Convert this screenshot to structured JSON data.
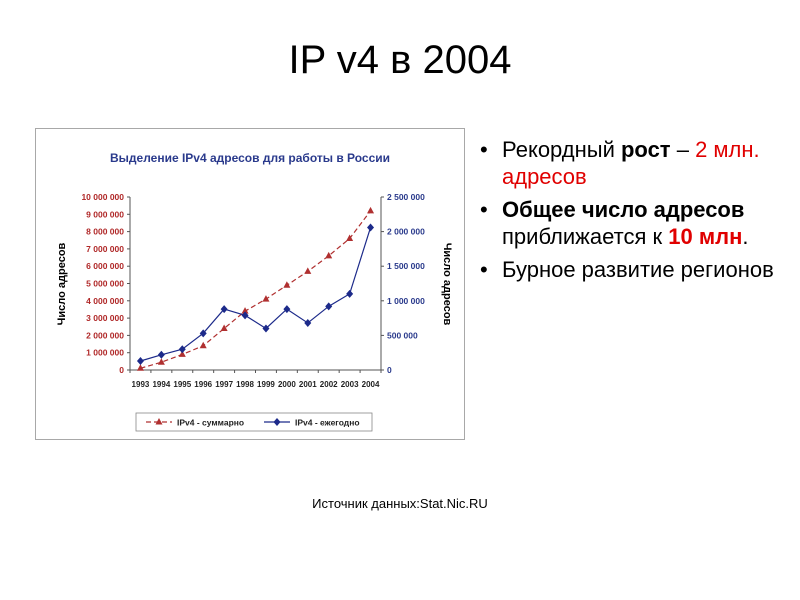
{
  "slide": {
    "title": "IP v4  в 2004",
    "source": "Источник данных:Stat.Nic.RU"
  },
  "bullets": [
    {
      "parts": [
        {
          "text": "Рекордный ",
          "bold": false,
          "color": ""
        },
        {
          "text": "рост",
          "bold": true,
          "color": ""
        },
        {
          "text": " – ",
          "bold": false,
          "color": ""
        },
        {
          "text": "2 млн. адресов",
          "bold": false,
          "color": "#e00000"
        }
      ]
    },
    {
      "parts": [
        {
          "text": "Общее число адресов",
          "bold": true,
          "color": ""
        },
        {
          "text": " приближается к ",
          "bold": false,
          "color": ""
        },
        {
          "text": "10 млн",
          "bold": true,
          "color": "#e00000"
        },
        {
          "text": ".",
          "bold": false,
          "color": ""
        }
      ]
    },
    {
      "parts": [
        {
          "text": "Бурное развитие регионов",
          "bold": false,
          "color": ""
        }
      ]
    }
  ],
  "chart_data": {
    "type": "line",
    "title": "Выделение IPv4 адресов для работы в России",
    "x": [
      "1993",
      "1994",
      "1995",
      "1996",
      "1997",
      "1998",
      "1999",
      "2000",
      "2001",
      "2002",
      "2003",
      "2004"
    ],
    "ylabel_left": "Число адресов",
    "ylabel_right": "Число адресов",
    "ylim_left": [
      0,
      10000000
    ],
    "ylim_right": [
      0,
      2500000
    ],
    "yticks_left": [
      "0",
      "1 000 000",
      "2 000 000",
      "3 000 000",
      "4 000 000",
      "5 000 000",
      "6 000 000",
      "7 000 000",
      "8 000 000",
      "9 000 000",
      "10 000 000"
    ],
    "yticks_right": [
      "0",
      "500 000",
      "1 000 000",
      "1 500 000",
      "2 000 000",
      "2 500 000"
    ],
    "left_axis_color": "#b02828",
    "right_axis_color": "#2a3a8c",
    "legend_position": "bottom",
    "series": [
      {
        "name": "IPv4 - суммарно",
        "axis": "left",
        "color": "#b03030",
        "marker": "triangle",
        "dashed": true,
        "values": [
          100000,
          450000,
          900000,
          1400000,
          2400000,
          3400000,
          4100000,
          4900000,
          5700000,
          6600000,
          7600000,
          9200000
        ]
      },
      {
        "name": "IPv4 - ежегодно",
        "axis": "right",
        "color": "#1c2a8a",
        "marker": "diamond",
        "dashed": false,
        "values": [
          130000,
          220000,
          300000,
          530000,
          880000,
          790000,
          600000,
          880000,
          680000,
          920000,
          1100000,
          2060000
        ]
      }
    ]
  }
}
